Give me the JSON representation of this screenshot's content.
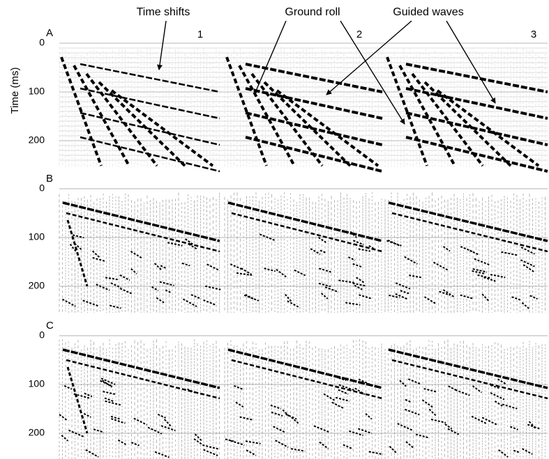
{
  "figure": {
    "y_axis_label": "Time (ms)",
    "annotations": [
      "Time shifts",
      "Ground roll",
      "Guided waves"
    ],
    "panels": [
      {
        "label": "A",
        "gathers": [
          "1",
          "2",
          "3"
        ],
        "yticks": [
          0,
          100,
          200
        ]
      },
      {
        "label": "B",
        "yticks": [
          0,
          100,
          200
        ]
      },
      {
        "label": "C",
        "yticks": [
          0,
          100,
          200
        ]
      }
    ]
  }
}
